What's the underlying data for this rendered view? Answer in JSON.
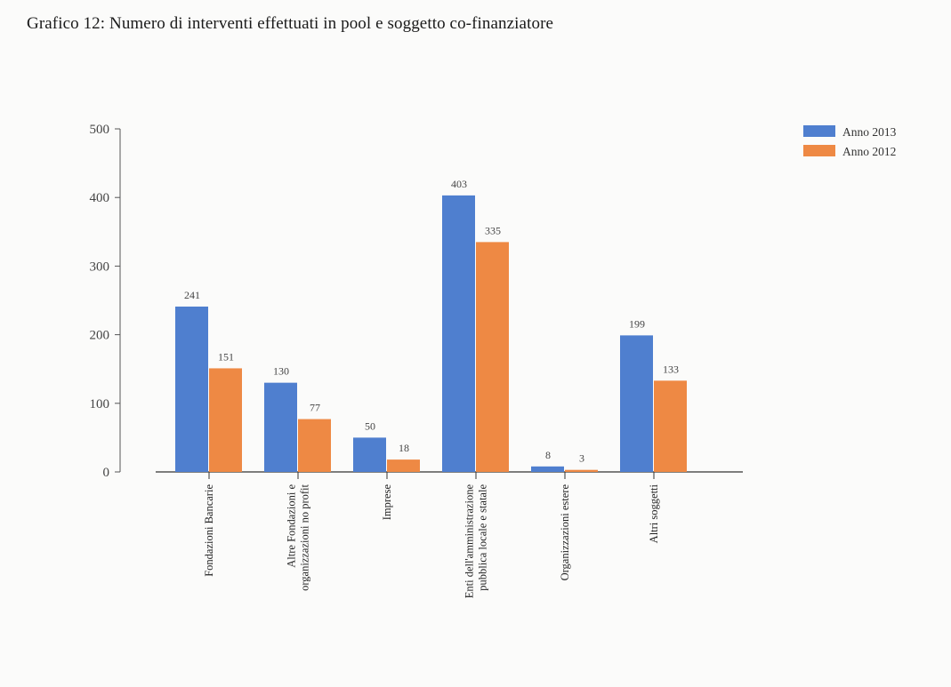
{
  "title": "Grafico 12: Numero di interventi effettuati in pool e soggetto co-finanziatore",
  "chart_data": {
    "type": "bar",
    "categories": [
      [
        "Fondazioni Bancarie"
      ],
      [
        "Altre Fondazioni e",
        "organizzazioni no profit"
      ],
      [
        "Imprese"
      ],
      [
        "Enti dell'amministrazione",
        "pubblica locale e statale"
      ],
      [
        "Organizzazioni estere"
      ],
      [
        "Altri soggetti"
      ]
    ],
    "series": [
      {
        "name": "Anno 2013",
        "color": "#4f7fcf",
        "values": [
          241,
          130,
          50,
          403,
          8,
          199
        ]
      },
      {
        "name": "Anno 2012",
        "color": "#ee8944",
        "values": [
          151,
          77,
          18,
          335,
          3,
          133
        ]
      }
    ],
    "ylim": [
      0,
      500
    ],
    "yticks": [
      0,
      100,
      200,
      300,
      400,
      500
    ],
    "grid": false,
    "legend": "top-right",
    "xlabel": "",
    "ylabel": ""
  }
}
